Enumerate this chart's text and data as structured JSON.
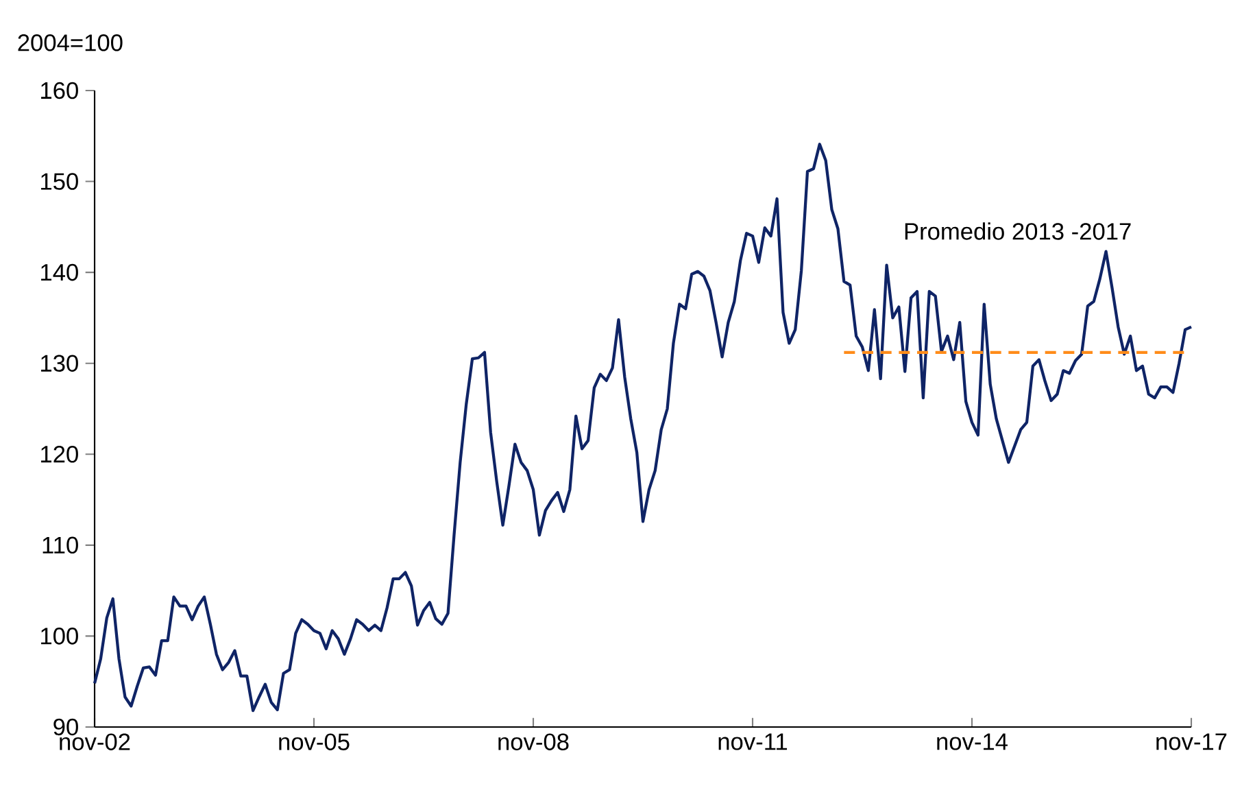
{
  "chart_data": {
    "type": "line",
    "ylabel": "2004=100",
    "x": [
      "2002-11",
      "2002-12",
      "2003-01",
      "2003-02",
      "2003-03",
      "2003-04",
      "2003-05",
      "2003-06",
      "2003-07",
      "2003-08",
      "2003-09",
      "2003-10",
      "2003-11",
      "2003-12",
      "2004-01",
      "2004-02",
      "2004-03",
      "2004-04",
      "2004-05",
      "2004-06",
      "2004-07",
      "2004-08",
      "2004-09",
      "2004-10",
      "2004-11",
      "2004-12",
      "2005-01",
      "2005-02",
      "2005-03",
      "2005-04",
      "2005-05",
      "2005-06",
      "2005-07",
      "2005-08",
      "2005-09",
      "2005-10",
      "2005-11",
      "2005-12",
      "2006-01",
      "2006-02",
      "2006-03",
      "2006-04",
      "2006-05",
      "2006-06",
      "2006-07",
      "2006-08",
      "2006-09",
      "2006-10",
      "2006-11",
      "2006-12",
      "2007-01",
      "2007-02",
      "2007-03",
      "2007-04",
      "2007-05",
      "2007-06",
      "2007-07",
      "2007-08",
      "2007-09",
      "2007-10",
      "2007-11",
      "2007-12",
      "2008-01",
      "2008-02",
      "2008-03",
      "2008-04",
      "2008-05",
      "2008-06",
      "2008-07",
      "2008-08",
      "2008-09",
      "2008-10",
      "2008-11",
      "2008-12",
      "2009-01",
      "2009-02",
      "2009-03",
      "2009-04",
      "2009-05",
      "2009-06",
      "2009-07",
      "2009-08",
      "2009-09",
      "2009-10",
      "2009-11",
      "2009-12",
      "2010-01",
      "2010-02",
      "2010-03",
      "2010-04",
      "2010-05",
      "2010-06",
      "2010-07",
      "2010-08",
      "2010-09",
      "2010-10",
      "2010-11",
      "2010-12",
      "2011-01",
      "2011-02",
      "2011-03",
      "2011-04",
      "2011-05",
      "2011-06",
      "2011-07",
      "2011-08",
      "2011-09",
      "2011-10",
      "2011-11",
      "2011-12",
      "2012-01",
      "2012-02",
      "2012-03",
      "2012-04",
      "2012-05",
      "2012-06",
      "2012-07",
      "2012-08",
      "2012-09",
      "2012-10",
      "2012-11",
      "2012-12",
      "2013-01",
      "2013-02",
      "2013-03",
      "2013-04",
      "2013-05",
      "2013-06",
      "2013-07",
      "2013-08",
      "2013-09",
      "2013-10",
      "2013-11",
      "2013-12",
      "2014-01",
      "2014-02",
      "2014-03",
      "2014-04",
      "2014-05",
      "2014-06",
      "2014-07",
      "2014-08",
      "2014-09",
      "2014-10",
      "2014-11",
      "2014-12",
      "2015-01",
      "2015-02",
      "2015-03",
      "2015-04",
      "2015-05",
      "2015-06",
      "2015-07",
      "2015-08",
      "2015-09",
      "2015-10",
      "2015-11",
      "2015-12",
      "2016-01",
      "2016-02",
      "2016-03",
      "2016-04",
      "2016-05",
      "2016-06",
      "2016-07",
      "2016-08",
      "2016-09",
      "2016-10",
      "2016-11",
      "2016-12",
      "2017-01",
      "2017-02",
      "2017-03",
      "2017-04",
      "2017-05",
      "2017-06",
      "2017-07",
      "2017-08",
      "2017-09",
      "2017-10",
      "2017-11"
    ],
    "xlim": [
      "2002-11",
      "2017-11"
    ],
    "xticks": [
      {
        "value": "2002-11",
        "label": "nov-02"
      },
      {
        "value": "2005-11",
        "label": "nov-05"
      },
      {
        "value": "2008-11",
        "label": "nov-08"
      },
      {
        "value": "2011-11",
        "label": "nov-11"
      },
      {
        "value": "2014-11",
        "label": "nov-14"
      },
      {
        "value": "2017-11",
        "label": "nov-17"
      }
    ],
    "ylim": [
      90,
      160
    ],
    "yticks": [
      90,
      100,
      110,
      120,
      130,
      140,
      150,
      160
    ],
    "series": [
      {
        "color": "#0f2466",
        "values": [
          94.8,
          97.5,
          102,
          104.1,
          97.5,
          93.3,
          92.3,
          94.5,
          96.5,
          96.6,
          95.7,
          99.5,
          99.5,
          104.3,
          103.3,
          103.3,
          101.8,
          103.3,
          104.3,
          101.3,
          98,
          96.3,
          97.1,
          98.4,
          95.6,
          95.6,
          91.8,
          93.3,
          94.7,
          92.7,
          91.9,
          95.9,
          96.3,
          100.3,
          101.8,
          101.3,
          100.6,
          100.3,
          98.6,
          100.6,
          99.7,
          98,
          99.7,
          101.8,
          101.3,
          100.6,
          101.2,
          100.6,
          103.1,
          106.3,
          106.3,
          107,
          105.5,
          101.2,
          102.8,
          103.7,
          101.9,
          101.3,
          102.5,
          111.1,
          119.1,
          125.5,
          130.5,
          130.6,
          131.2,
          122.4,
          117,
          112.2,
          116.5,
          121.1,
          119.1,
          118.2,
          116.1,
          111.1,
          113.8,
          114.9,
          115.8,
          113.7,
          116.1,
          124.2,
          120.6,
          121.5,
          127.3,
          128.8,
          128.1,
          129.5,
          134.8,
          128.5,
          123.9,
          120.2,
          112.6,
          116.1,
          118.2,
          122.7,
          125,
          132.2,
          136.5,
          136,
          139.8,
          140.1,
          139.6,
          138,
          134.5,
          130.7,
          134.5,
          136.8,
          141.3,
          144.3,
          144,
          141.1,
          144.9,
          144,
          148.1,
          135.6,
          132.2,
          133.7,
          140.2,
          151.1,
          151.4,
          154.1,
          152.3,
          146.9,
          144.8,
          139,
          138.6,
          133,
          131.8,
          129.2,
          135.9,
          128.3,
          140.8,
          135,
          136.2,
          129.1,
          137.2,
          137.9,
          126.2,
          137.9,
          137.4,
          131.3,
          133,
          130.4,
          134.5,
          125.8,
          123.5,
          122.1,
          136.5,
          127.7,
          123.9,
          121.5,
          119.1,
          120.9,
          122.7,
          123.5,
          129.7,
          130.4,
          128,
          125.9,
          126.6,
          129.2,
          128.9,
          130.3,
          131,
          136.3,
          136.8,
          139.3,
          142.3,
          138.3,
          134,
          131,
          133,
          129.2,
          129.7,
          126.6,
          126.2,
          127.4,
          127.4,
          126.8,
          130,
          133.7,
          134
        ]
      },
      {
        "name": "Promedio 2013 -2017",
        "color": "#ff8c1a",
        "line_style": "dashed",
        "x": [
          "2013-02",
          "2017-11"
        ],
        "values": [
          131.2,
          131.2
        ]
      }
    ]
  }
}
